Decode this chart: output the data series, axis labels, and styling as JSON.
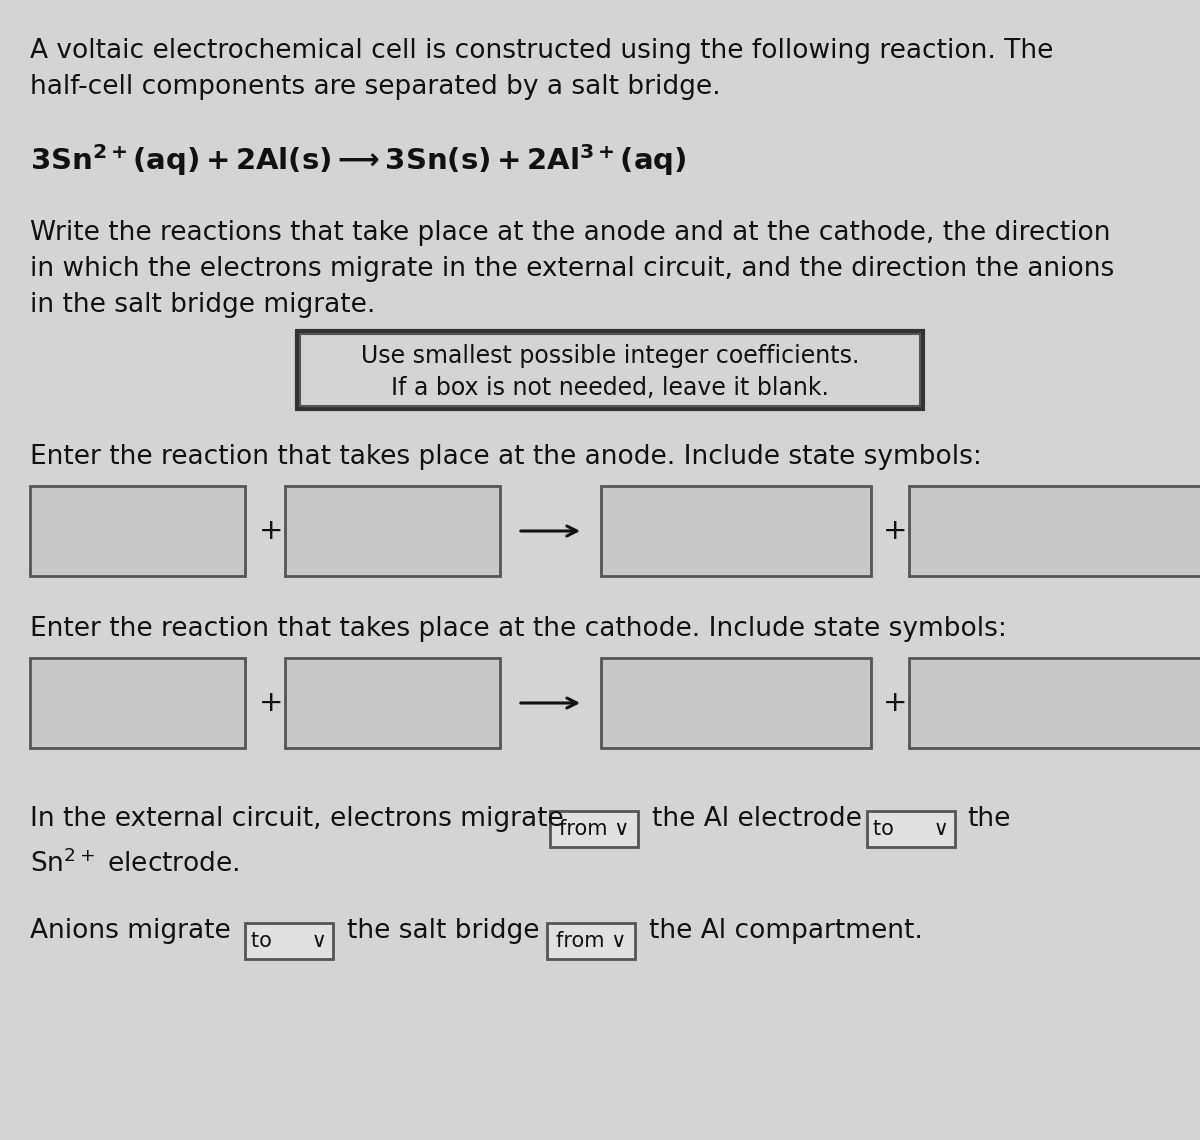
{
  "bg_color": "#d4d4d4",
  "text_color": "#111111",
  "box_facecolor": "#c8c8c8",
  "box_edgecolor": "#555555",
  "dropdown_facecolor": "#e0e0e0",
  "dropdown_edgecolor": "#555555",
  "para1_line1": "A voltaic electrochemical cell is constructed using the following reaction. The",
  "para1_line2": "half-cell components are separated by a salt bridge.",
  "hint1": "Use smallest possible integer coefficients.",
  "hint2": "If a box is not needed, leave it blank.",
  "anode_label": "Enter the reaction that takes place at the anode. Include state symbols:",
  "cathode_label": "Enter the reaction that takes place at the cathode. Include state symbols:",
  "para2_line1": "Write the reactions that take place at the anode and at the cathode, the direction",
  "para2_line2": "in which the electrons migrate in the external circuit, and the direction the anions",
  "para2_line3": "in the salt bridge migrate.",
  "elec_pre": "In the external circuit, electrons migrate",
  "elec_dd1": "from ∨",
  "elec_mid": "the Al electrode",
  "elec_dd2": "to      ∨",
  "elec_post": "the",
  "elec_line2": "Sn",
  "elec_line2b": " electrode.",
  "anion_pre": "Anions migrate",
  "anion_dd1": "to      ∨",
  "anion_mid": "the salt bridge",
  "anion_dd2": "from ∨",
  "anion_post": "the Al compartment.",
  "fig_width": 12.0,
  "fig_height": 11.4,
  "dpi": 100
}
